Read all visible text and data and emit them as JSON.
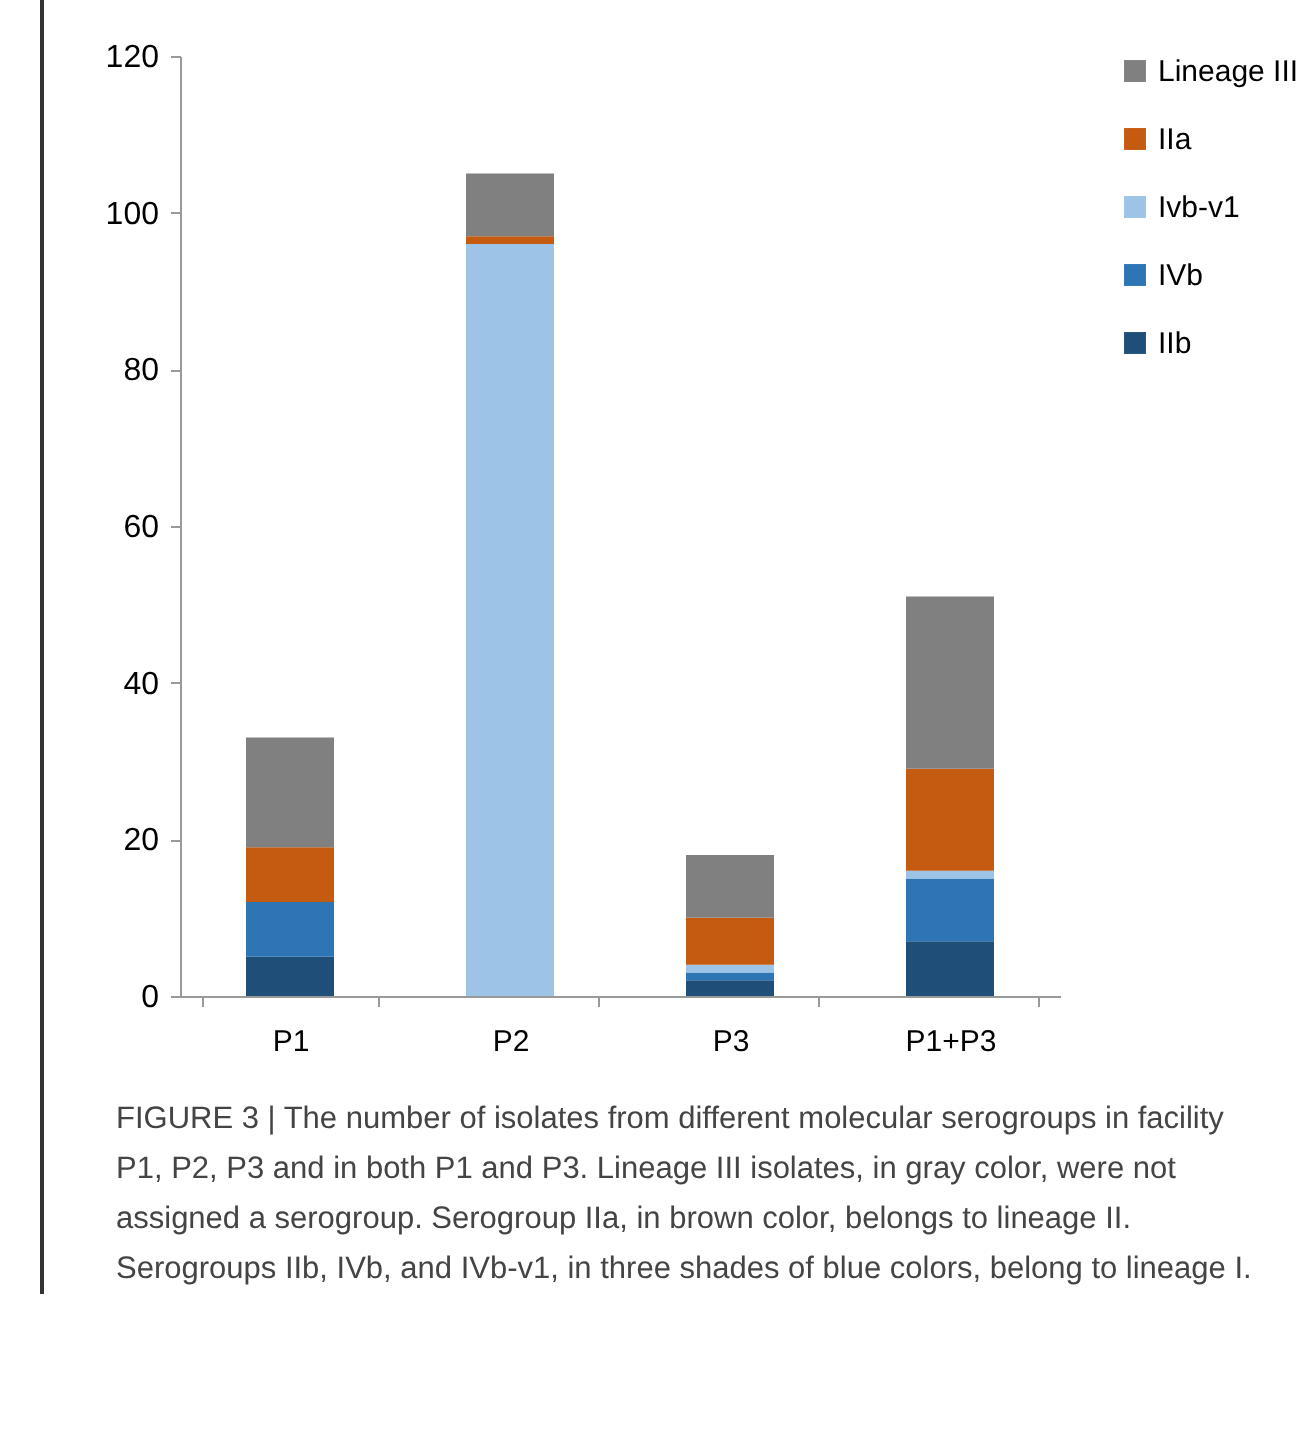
{
  "chart_data": {
    "type": "bar",
    "stacked": true,
    "categories": [
      "P1",
      "P2",
      "P3",
      "P1+P3"
    ],
    "series": [
      {
        "name": "IIb",
        "color": "#1f4e79",
        "values": [
          5,
          0,
          2,
          7
        ]
      },
      {
        "name": "IVb",
        "color": "#2e75b6",
        "values": [
          7,
          0,
          1,
          8
        ]
      },
      {
        "name": "Ivb-v1",
        "color": "#9dc3e6",
        "values": [
          0,
          96,
          1,
          1
        ]
      },
      {
        "name": "IIa",
        "color": "#c55a11",
        "values": [
          7,
          1,
          6,
          13
        ]
      },
      {
        "name": "Lineage III",
        "color": "#808080",
        "values": [
          14,
          8,
          8,
          22
        ]
      }
    ],
    "ylim": [
      0,
      120
    ],
    "yticks": [
      0,
      20,
      40,
      60,
      80,
      100,
      120
    ],
    "grid": false,
    "legend": "right",
    "annotations": [
      "FIGURE 3 | The number of isolates from different molecular serogroups in facility P1, P2, P3 and in both P1 and P3. Lineage III isolates, in gray color, were not assigned a serogroup. Serogroup IIa, in brown color, belongs to lineage II. Serogroups IIb, IVb, and IVb-v1, in three shades of blue colors, belong to lineage I."
    ]
  }
}
